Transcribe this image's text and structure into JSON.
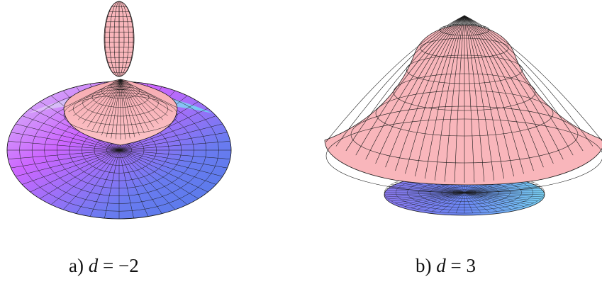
{
  "panels": [
    {
      "id": "a",
      "caption_prefix": "a)",
      "caption_var": "d",
      "caption_rel": "=",
      "caption_value": "−2"
    },
    {
      "id": "b",
      "caption_prefix": "b)",
      "caption_var": "d",
      "caption_rel": "=",
      "caption_value": "3"
    }
  ],
  "colors": {
    "mesh": "#1a1a1a",
    "pink_surface": "#f9b6bb",
    "disk_violet": "#cc66ff",
    "disk_blue": "#5577ee",
    "disk_cyan": "#66e8f0",
    "disk_lavender": "#d8c4f5"
  }
}
